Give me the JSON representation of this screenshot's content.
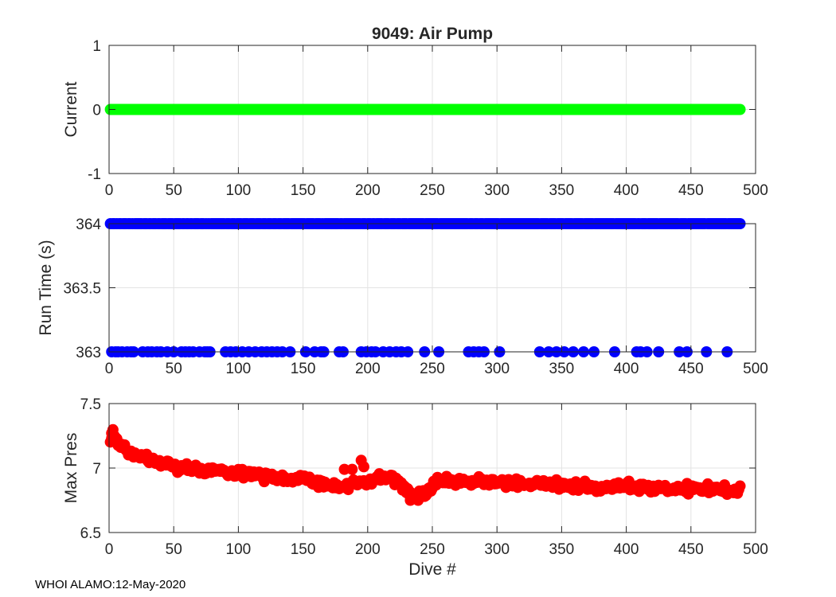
{
  "footer": "WHOI ALAMO:12-May-2020",
  "chart_data": [
    {
      "type": "scatter",
      "title": "9049: Air Pump",
      "xlabel": "",
      "ylabel": "Current",
      "xlim": [
        0,
        500
      ],
      "ylim": [
        -1,
        1
      ],
      "xticks": [
        0,
        50,
        100,
        150,
        200,
        250,
        300,
        350,
        400,
        450,
        500
      ],
      "yticks": [
        -1,
        0,
        1
      ],
      "ytick_labels": [
        "-1",
        "0",
        "1"
      ],
      "color": "#00ff00",
      "x_range": [
        1,
        488
      ],
      "y_constant": 0,
      "grid": true
    },
    {
      "type": "scatter",
      "title": "",
      "xlabel": "",
      "ylabel": "Run Time (s)",
      "xlim": [
        0,
        500
      ],
      "ylim": [
        363,
        364
      ],
      "xticks": [
        0,
        50,
        100,
        150,
        200,
        250,
        300,
        350,
        400,
        450,
        500
      ],
      "yticks": [
        363,
        363.5,
        364
      ],
      "ytick_labels": [
        "363",
        "363.5",
        "364"
      ],
      "color": "#0000ff",
      "high_value": 364,
      "low_value": 363,
      "high_x_range": [
        1,
        488
      ],
      "low_x": [
        2,
        5,
        7,
        10,
        14,
        17,
        19,
        26,
        30,
        33,
        37,
        40,
        45,
        50,
        56,
        59,
        62,
        65,
        70,
        74,
        76,
        78,
        90,
        94,
        98,
        103,
        108,
        113,
        118,
        122,
        126,
        130,
        134,
        140,
        152,
        159,
        164,
        166,
        178,
        181,
        195,
        199,
        203,
        206,
        212,
        217,
        222,
        226,
        231,
        244,
        255,
        278,
        282,
        286,
        290,
        302,
        333,
        340,
        346,
        352,
        359,
        367,
        375,
        391,
        408,
        411,
        416,
        425,
        441,
        447,
        462,
        478
      ],
      "grid": true
    },
    {
      "type": "scatter",
      "title": "",
      "xlabel": "Dive #",
      "ylabel": "Max Pres",
      "xlim": [
        0,
        500
      ],
      "ylim": [
        6.5,
        7.5
      ],
      "xticks": [
        0,
        50,
        100,
        150,
        200,
        250,
        300,
        350,
        400,
        450,
        500
      ],
      "yticks": [
        6.5,
        7,
        7.5
      ],
      "ytick_labels": [
        "6.5",
        "7",
        "7.5"
      ],
      "color": "#ff0000",
      "anchors": [
        [
          1,
          7.2
        ],
        [
          3,
          7.26
        ],
        [
          10,
          7.17
        ],
        [
          20,
          7.1
        ],
        [
          30,
          7.07
        ],
        [
          40,
          7.04
        ],
        [
          50,
          7.02
        ],
        [
          60,
          7.0
        ],
        [
          70,
          6.98
        ],
        [
          80,
          6.98
        ],
        [
          90,
          6.97
        ],
        [
          100,
          6.96
        ],
        [
          110,
          6.95
        ],
        [
          120,
          6.94
        ],
        [
          130,
          6.93
        ],
        [
          140,
          6.92
        ],
        [
          150,
          6.91
        ],
        [
          160,
          6.89
        ],
        [
          170,
          6.86
        ],
        [
          180,
          6.85
        ],
        [
          190,
          6.88
        ],
        [
          200,
          6.88
        ],
        [
          210,
          6.93
        ],
        [
          220,
          6.92
        ],
        [
          228,
          6.85
        ],
        [
          235,
          6.78
        ],
        [
          245,
          6.82
        ],
        [
          255,
          6.9
        ],
        [
          270,
          6.9
        ],
        [
          285,
          6.89
        ],
        [
          300,
          6.89
        ],
        [
          320,
          6.88
        ],
        [
          340,
          6.87
        ],
        [
          360,
          6.86
        ],
        [
          380,
          6.86
        ],
        [
          400,
          6.86
        ],
        [
          420,
          6.85
        ],
        [
          440,
          6.84
        ],
        [
          460,
          6.84
        ],
        [
          475,
          6.83
        ],
        [
          488,
          6.83
        ]
      ],
      "outliers": [
        [
          2,
          7.27
        ],
        [
          195,
          7.06
        ],
        [
          197,
          7.01
        ],
        [
          188,
          6.99
        ],
        [
          182,
          6.99
        ],
        [
          233,
          6.75
        ],
        [
          239,
          6.75
        ],
        [
          244,
          6.78
        ],
        [
          6,
          7.21
        ],
        [
          12,
          7.18
        ]
      ],
      "n_points": 488,
      "grid": true
    }
  ]
}
